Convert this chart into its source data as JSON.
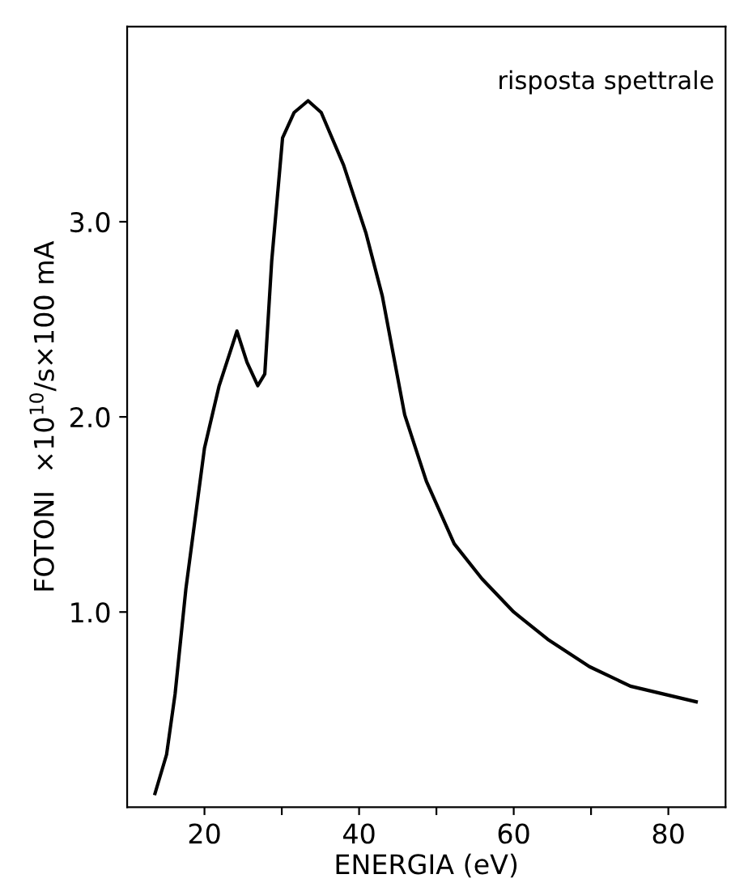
{
  "chart_data": {
    "type": "line",
    "xlabel": "ENERGIA (eV)",
    "ylabel": "FOTONI  ×10$^{10}$/s×100 mA",
    "annotations": [
      "risposta spettrale"
    ],
    "x": [
      13.6,
      15.1,
      16.2,
      17.6,
      20.0,
      21.9,
      24.2,
      25.5,
      26.9,
      27.8,
      28.7,
      30.1,
      31.6,
      33.4,
      35.1,
      38.0,
      40.9,
      43.0,
      45.9,
      48.7,
      52.3,
      55.9,
      60.0,
      64.4,
      69.8,
      75.1,
      83.6
    ],
    "series": [
      {
        "color": "#000000",
        "values": [
          0.07,
          0.27,
          0.58,
          1.12,
          1.84,
          2.16,
          2.44,
          2.28,
          2.16,
          2.22,
          2.8,
          3.43,
          3.56,
          3.62,
          3.56,
          3.29,
          2.94,
          2.62,
          2.01,
          1.67,
          1.35,
          1.17,
          1.0,
          0.86,
          0.72,
          0.62,
          0.54
        ]
      }
    ],
    "xlim": [
      10,
      87.4
    ],
    "ylim": [
      0,
      4
    ],
    "xticks": [
      20,
      {
        "value": 30,
        "label": null
      },
      40,
      {
        "value": 50,
        "label": null
      },
      60,
      {
        "value": 70,
        "label": null
      },
      80
    ],
    "yticks": [
      {
        "value": 1,
        "label": "1.0"
      },
      {
        "value": 2,
        "label": "2.0"
      },
      {
        "value": 3,
        "label": "3.0"
      }
    ],
    "grid": false,
    "legend": false,
    "marker": "none",
    "line_style": "solid"
  }
}
